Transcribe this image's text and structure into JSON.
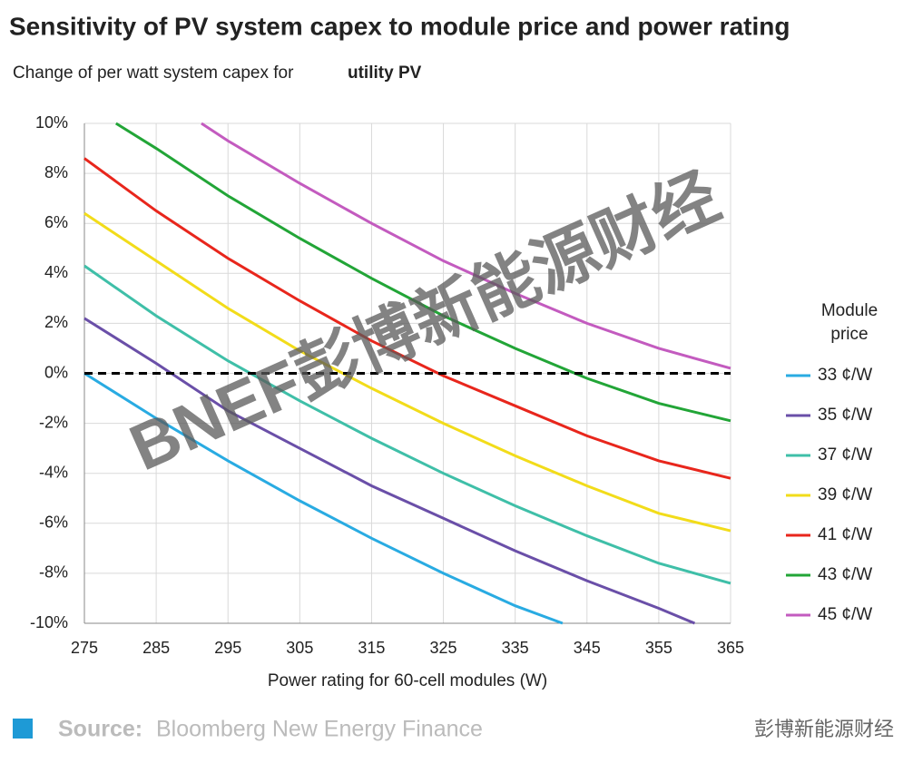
{
  "chart_data": {
    "type": "line",
    "title": "Sensitivity of PV system capex to module price and power rating",
    "subtitle": "Change of per watt system capex for",
    "subtitle_bold": "utility PV",
    "x_label": "Power rating for 60-cell modules (W)",
    "legend_title": "Module price",
    "source_label": "Source:",
    "source": "Bloomberg New Energy Finance",
    "watermark": "BNEF彭博新能源财经",
    "brand": "彭博新能源财经",
    "xlim": [
      275,
      365
    ],
    "xticks": [
      275,
      285,
      295,
      305,
      315,
      325,
      335,
      345,
      355,
      365
    ],
    "ylim": [
      -10,
      10
    ],
    "yticks": [
      {
        "value": -10,
        "label": "-10%"
      },
      {
        "value": -8,
        "label": "-8%"
      },
      {
        "value": -6,
        "label": "-6%"
      },
      {
        "value": -4,
        "label": "-4%"
      },
      {
        "value": -2,
        "label": "-2%"
      },
      {
        "value": 0,
        "label": "0%"
      },
      {
        "value": 2,
        "label": "2%"
      },
      {
        "value": 4,
        "label": "4%"
      },
      {
        "value": 6,
        "label": "6%"
      },
      {
        "value": 8,
        "label": "8%"
      },
      {
        "value": 10,
        "label": "10%"
      }
    ],
    "grid": true,
    "zero_line": 0,
    "legend_position": "right",
    "series": [
      {
        "name": "33 ¢/W",
        "color": "#29abe2",
        "x": [
          275,
          285,
          295,
          305,
          315,
          325,
          335,
          341.6
        ],
        "values": [
          0,
          -1.8,
          -3.5,
          -5.1,
          -6.6,
          -8.0,
          -9.3,
          -10
        ]
      },
      {
        "name": "35 ¢/W",
        "color": "#6a4fa8",
        "x": [
          275,
          285,
          295,
          305,
          315,
          325,
          335,
          345,
          355,
          360
        ],
        "values": [
          2.2,
          0.4,
          -1.5,
          -3.0,
          -4.5,
          -5.8,
          -7.1,
          -8.3,
          -9.4,
          -10
        ]
      },
      {
        "name": "37 ¢/W",
        "color": "#3fbfa8",
        "x": [
          275,
          285,
          295,
          305,
          315,
          325,
          335,
          345,
          355,
          365
        ],
        "values": [
          4.3,
          2.3,
          0.5,
          -1.1,
          -2.6,
          -4.0,
          -5.3,
          -6.5,
          -7.6,
          -8.4
        ]
      },
      {
        "name": "39 ¢/W",
        "color": "#f2dc1a",
        "x": [
          275,
          285,
          295,
          305,
          315,
          325,
          335,
          345,
          355,
          365
        ],
        "values": [
          6.4,
          4.5,
          2.6,
          0.9,
          -0.6,
          -2.0,
          -3.3,
          -4.5,
          -5.6,
          -6.3
        ]
      },
      {
        "name": "41 ¢/W",
        "color": "#e8261c",
        "x": [
          275,
          285,
          295,
          305,
          315,
          325,
          335,
          345,
          355,
          365
        ],
        "values": [
          8.6,
          6.5,
          4.6,
          2.9,
          1.3,
          -0.1,
          -1.3,
          -2.5,
          -3.5,
          -4.2
        ]
      },
      {
        "name": "43 ¢/W",
        "color": "#22a537",
        "x": [
          279.4,
          285,
          295,
          305,
          315,
          325,
          335,
          345,
          355,
          365
        ],
        "values": [
          10,
          9.0,
          7.1,
          5.4,
          3.8,
          2.3,
          1.0,
          -0.2,
          -1.2,
          -1.9
        ]
      },
      {
        "name": "45 ¢/W",
        "color": "#c35bbf",
        "x": [
          291.3,
          295,
          305,
          315,
          325,
          335,
          345,
          355,
          365
        ],
        "values": [
          10,
          9.3,
          7.6,
          6.0,
          4.5,
          3.2,
          2.0,
          1.0,
          0.2
        ]
      }
    ]
  }
}
